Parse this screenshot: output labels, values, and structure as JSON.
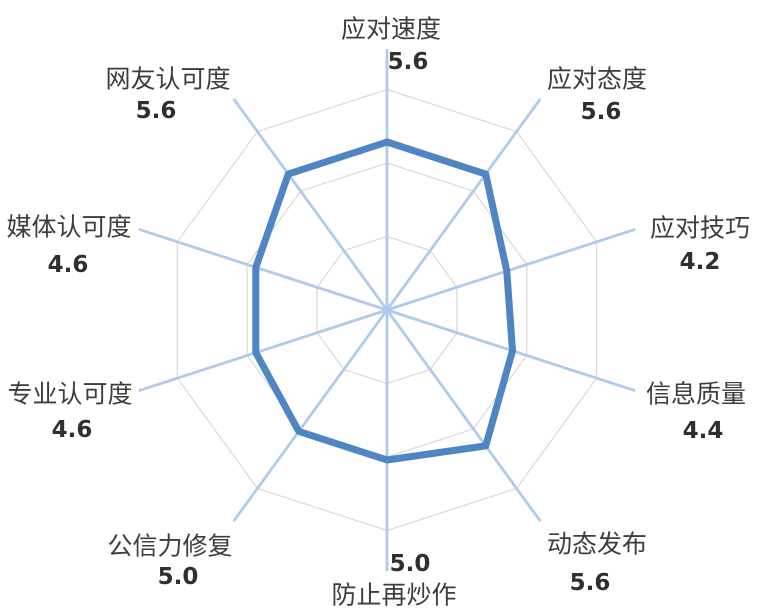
{
  "chart_data": {
    "type": "radar",
    "title": "",
    "axes": [
      {
        "label": "应对速度",
        "value": 5.6,
        "value_label": "5.6"
      },
      {
        "label": "应对态度",
        "value": 5.6,
        "value_label": "5.6"
      },
      {
        "label": "应对技巧",
        "value": 4.2,
        "value_label": "4.2"
      },
      {
        "label": "信息质量",
        "value": 4.4,
        "value_label": "4.4"
      },
      {
        "label": "动态发布",
        "value": 5.6,
        "value_label": "5.6"
      },
      {
        "label": "防止再炒作",
        "value": 5.0,
        "value_label": "5.0"
      },
      {
        "label": "公信力修复",
        "value": 5.0,
        "value_label": "5.0"
      },
      {
        "label": "专业认可度",
        "value": 4.6,
        "value_label": "4.6"
      },
      {
        "label": "媒体认可度",
        "value": 4.6,
        "value_label": "4.6"
      },
      {
        "label": "网友认可度",
        "value": 5.6,
        "value_label": "5.6"
      }
    ],
    "scale": {
      "min": 0,
      "max": 7.5,
      "grid_rings": 3
    },
    "legend": null,
    "style": {
      "series_color": "#4f85c3",
      "spoke_color": "#aecbeb",
      "grid_color": "#d9d9d9",
      "label_color": "#3d3d3d",
      "value_color": "#2f2f2f",
      "background": "#ffffff"
    }
  }
}
